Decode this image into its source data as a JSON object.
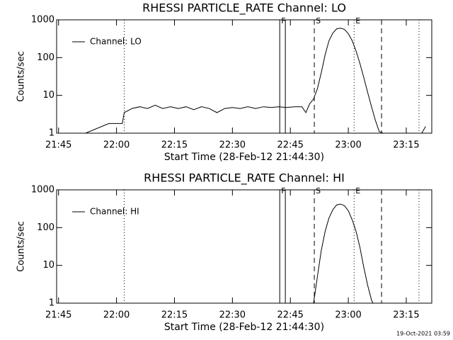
{
  "chart_data": [
    {
      "type": "line",
      "title": "RHESSI PARTICLE_RATE Channel: LO",
      "xlabel": "Start Time (28-Feb-12 21:44:30)",
      "ylabel": "Counts/sec",
      "log_y": true,
      "legend": "top-left",
      "xlim": [
        1304.5,
        1401.6
      ],
      "ylim": [
        1,
        1000
      ],
      "yticks": [
        1,
        10,
        100,
        1000
      ],
      "xticks": [
        {
          "value": 1305,
          "label": "21:45"
        },
        {
          "value": 1320,
          "label": "22:00"
        },
        {
          "value": 1335,
          "label": "22:15"
        },
        {
          "value": 1350,
          "label": "22:30"
        },
        {
          "value": 1365,
          "label": "22:45"
        },
        {
          "value": 1380,
          "label": "23:00"
        },
        {
          "value": 1395,
          "label": "23:15"
        }
      ],
      "markers": [
        {
          "x": 1322.0,
          "style": "dotted"
        },
        {
          "x": 1362.25,
          "style": "solid",
          "label": "F"
        },
        {
          "x": 1363.7,
          "style": "solid"
        },
        {
          "x": 1371.2,
          "style": "dashed",
          "label": "S"
        },
        {
          "x": 1381.5,
          "style": "dotted",
          "label": "E"
        },
        {
          "x": 1388.6,
          "style": "dashed"
        },
        {
          "x": 1398.3,
          "style": "dotted"
        }
      ],
      "series": [
        {
          "name": "Channel: LO",
          "color": "#000000",
          "x": [
            1305,
            1312,
            1318,
            1321.5,
            1322,
            1324,
            1326,
            1328,
            1330,
            1332,
            1334,
            1336,
            1338,
            1340,
            1342,
            1344,
            1346,
            1348,
            1350,
            1352,
            1354,
            1356,
            1358,
            1360,
            1362,
            1364,
            1366,
            1368,
            1369,
            1370,
            1371,
            1372,
            1373,
            1374,
            1375,
            1376,
            1377,
            1378,
            1379,
            1380,
            1381,
            1382,
            1383,
            1384,
            1385,
            1386,
            1387,
            1388,
            1389,
            1395,
            1399,
            1400
          ],
          "values": [
            1,
            1,
            1.8,
            1.8,
            3.5,
            4.5,
            5,
            4.5,
            5.5,
            4.5,
            5,
            4.5,
            5,
            4.2,
            5,
            4.5,
            3.5,
            4.5,
            4.8,
            4.5,
            5,
            4.5,
            5,
            4.8,
            5,
            4.8,
            5,
            5,
            3.5,
            6,
            8,
            15,
            40,
            120,
            280,
            450,
            580,
            600,
            560,
            430,
            280,
            150,
            70,
            30,
            12,
            5,
            2.2,
            1.1,
            1,
            1,
            1,
            1.5
          ]
        }
      ]
    },
    {
      "type": "line",
      "title": "RHESSI PARTICLE_RATE Channel: HI",
      "xlabel": "Start Time (28-Feb-12 21:44:30)",
      "ylabel": "Counts/sec",
      "log_y": true,
      "legend": "top-left",
      "xlim": [
        1304.5,
        1401.6
      ],
      "ylim": [
        1,
        1000
      ],
      "yticks": [
        1,
        10,
        100,
        1000
      ],
      "xticks": [
        {
          "value": 1305,
          "label": "21:45"
        },
        {
          "value": 1320,
          "label": "22:00"
        },
        {
          "value": 1335,
          "label": "22:15"
        },
        {
          "value": 1350,
          "label": "22:30"
        },
        {
          "value": 1365,
          "label": "22:45"
        },
        {
          "value": 1380,
          "label": "23:00"
        },
        {
          "value": 1395,
          "label": "23:15"
        }
      ],
      "markers": [
        {
          "x": 1322.0,
          "style": "dotted"
        },
        {
          "x": 1362.25,
          "style": "solid",
          "label": "F"
        },
        {
          "x": 1363.7,
          "style": "solid"
        },
        {
          "x": 1371.2,
          "style": "dashed",
          "label": "S"
        },
        {
          "x": 1381.5,
          "style": "dotted",
          "label": "E"
        },
        {
          "x": 1388.6,
          "style": "dashed"
        },
        {
          "x": 1398.3,
          "style": "dotted"
        }
      ],
      "series": [
        {
          "name": "Channel: HI",
          "color": "#000000",
          "x": [
            1371,
            1372,
            1373,
            1374,
            1375,
            1376,
            1377,
            1378,
            1379,
            1380,
            1381,
            1382,
            1383,
            1384,
            1385,
            1386,
            1386.4
          ],
          "values": [
            1,
            5,
            25,
            80,
            180,
            300,
            400,
            420,
            380,
            280,
            160,
            80,
            30,
            9,
            3,
            1.2,
            1
          ]
        }
      ]
    }
  ],
  "footer": "19-Oct-2021 03:59"
}
